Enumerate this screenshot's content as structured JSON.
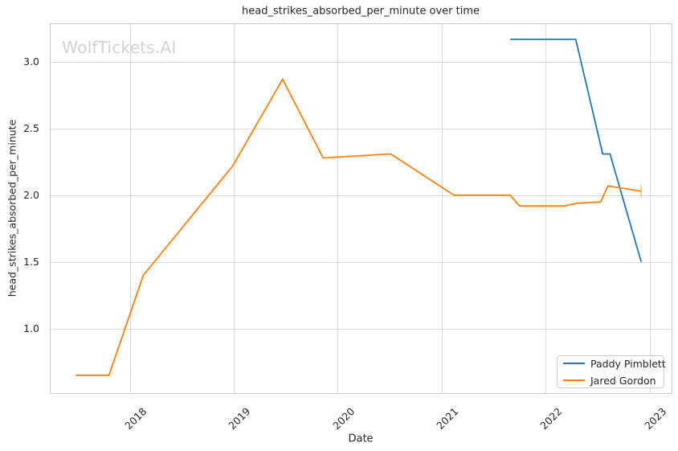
{
  "watermark": "WolfTickets.AI",
  "chart_data": {
    "type": "line",
    "title": "head_strikes_absorbed_per_minute over time",
    "xlabel": "Date",
    "ylabel": "head_strikes_absorbed_per_minute",
    "xlim": [
      2017.23,
      2023.22
    ],
    "ylim": [
      0.51,
      3.29
    ],
    "grid": true,
    "background_color": "#ffffff",
    "grid_color": "#d9d9d9",
    "spine_color": "#cbcbcb",
    "text_color": "#262626",
    "x_ticks": {
      "values": [
        2018,
        2019,
        2020,
        2021,
        2022,
        2023
      ],
      "labels": [
        "2018",
        "2019",
        "2020",
        "2021",
        "2022",
        "2023"
      ]
    },
    "y_ticks": {
      "values": [
        1.0,
        1.5,
        2.0,
        2.5,
        3.0
      ],
      "labels": [
        "1.0",
        "1.5",
        "2.0",
        "2.5",
        "3.0"
      ]
    },
    "legend": {
      "position": "lower right",
      "entries": [
        "Paddy Pimblett",
        "Jared Gordon"
      ]
    },
    "series": [
      {
        "name": "Paddy Pimblett",
        "color": "#1f77b4",
        "end_cap": false,
        "x": [
          2021.66,
          2022.29,
          2022.55,
          2022.62,
          2022.92
        ],
        "y": [
          3.17,
          3.17,
          2.31,
          2.31,
          1.5
        ]
      },
      {
        "name": "Jared Gordon",
        "color": "#ff7f0e",
        "end_cap": true,
        "x": [
          2017.48,
          2017.8,
          2018.13,
          2018.99,
          2019.47,
          2019.86,
          2020.51,
          2021.12,
          2021.66,
          2021.75,
          2022.18,
          2022.3,
          2022.53,
          2022.6,
          2022.92
        ],
        "y": [
          0.65,
          0.65,
          1.4,
          2.22,
          2.87,
          2.28,
          2.31,
          2.0,
          2.0,
          1.92,
          1.92,
          1.94,
          1.95,
          2.07,
          2.03
        ]
      }
    ]
  }
}
